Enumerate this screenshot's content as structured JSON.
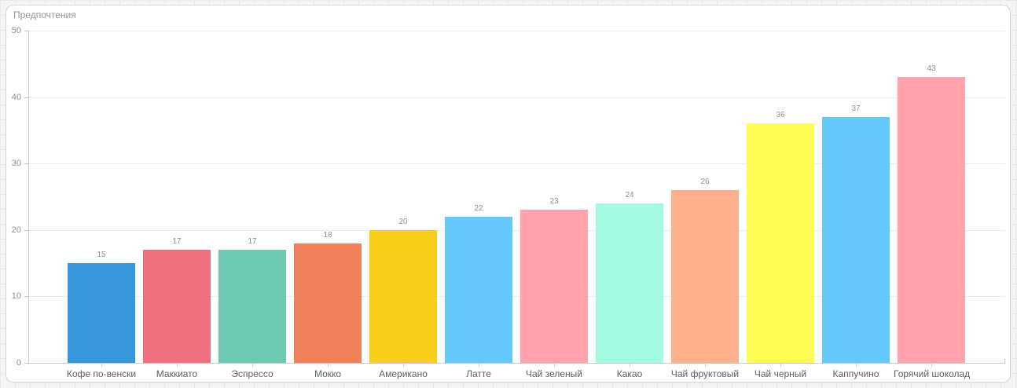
{
  "card": {
    "title": "Предпочтения"
  },
  "chart_data": {
    "type": "bar",
    "title": "Предпочтения",
    "categories": [
      "Кофе по-венски",
      "Маккиато",
      "Эспрессо",
      "Мокко",
      "Американо",
      "Латте",
      "Чай зеленый",
      "Какао",
      "Чай фруктовый",
      "Чай черный",
      "Каппучино",
      "Горячий шоколад"
    ],
    "values": [
      15,
      17,
      17,
      18,
      20,
      22,
      23,
      24,
      26,
      36,
      37,
      43
    ],
    "bar_colors": [
      "#3797db",
      "#ee6f7d",
      "#6dc9b2",
      "#f08058",
      "#fbcd1b",
      "#66c7fb",
      "#ffa2ab",
      "#a2fbe1",
      "#feb08c",
      "#fdfd55",
      "#66c7fb",
      "#ffa2ab"
    ],
    "xlabel": "",
    "ylabel": "",
    "ylim": [
      0,
      50
    ],
    "yticks": [
      0,
      10,
      20,
      30,
      40,
      50
    ],
    "grid": "horizontal",
    "legend": "none",
    "value_labels_shown": true,
    "colors": {
      "axis": "#c9c9c9",
      "gridline": "#ececec",
      "tick_label": "#8f8f8f",
      "category_label": "#606060",
      "value_label": "#8f8f8f",
      "title": "#949494",
      "card_border": "#d8d8d8",
      "card_bg": "#ffffff",
      "canvas_bg": "#f5f5f5"
    }
  }
}
